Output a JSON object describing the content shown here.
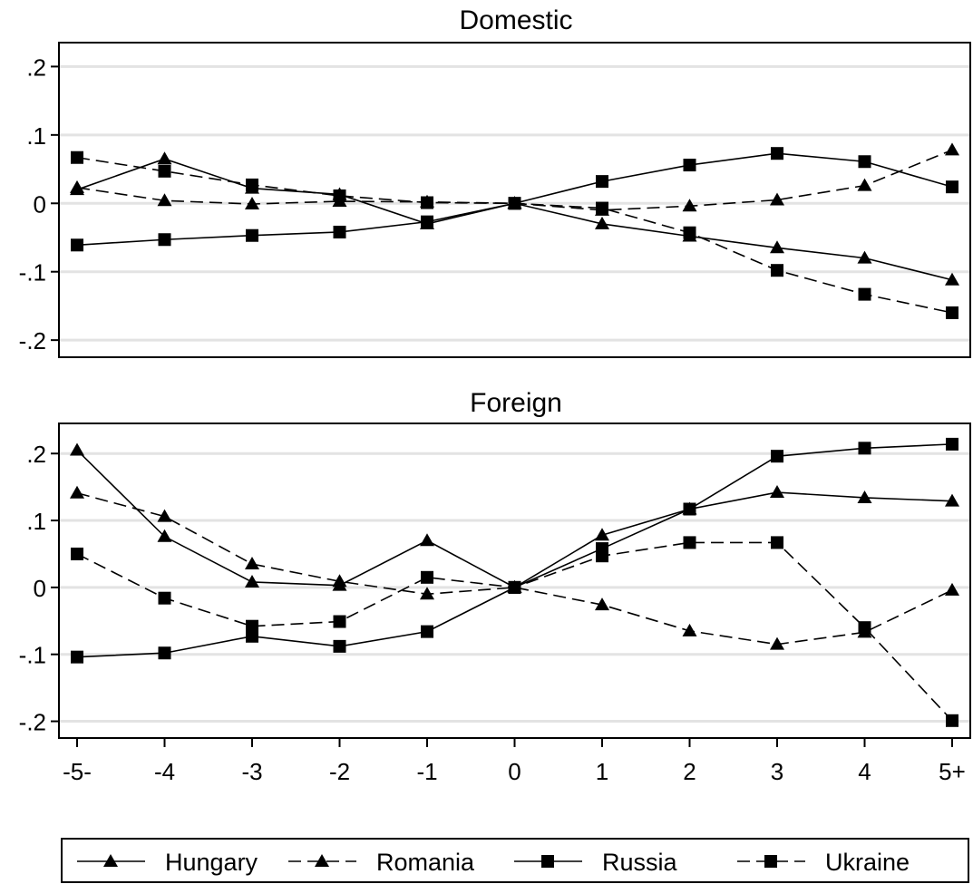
{
  "chart_data": {
    "type": "line",
    "x_tick_labels": [
      "-5-",
      "-4",
      "-3",
      "-2",
      "-1",
      "0",
      "1",
      "2",
      "3",
      "4",
      "5+"
    ],
    "y_tick_labels": [
      ".2",
      ".1",
      "0",
      "-.1",
      "-.2"
    ],
    "y_ticks": [
      0.2,
      0.1,
      0,
      -0.1,
      -0.2
    ],
    "grid": true,
    "legend_position": "bottom",
    "legend": [
      {
        "name": "Hungary",
        "marker": "triangle",
        "line": "solid"
      },
      {
        "name": "Romania",
        "marker": "triangle",
        "line": "dashed"
      },
      {
        "name": "Russia",
        "marker": "square",
        "line": "solid"
      },
      {
        "name": "Ukraine",
        "marker": "square",
        "line": "dashed"
      }
    ],
    "panels": [
      {
        "title": "Domestic",
        "ylim": [
          -0.225,
          0.235
        ],
        "series": [
          {
            "name": "Hungary",
            "values": [
              0.02,
              0.065,
              0.022,
              0.013,
              -0.03,
              0.0,
              -0.03,
              -0.048,
              -0.065,
              -0.08,
              -0.112
            ]
          },
          {
            "name": "Romania",
            "values": [
              0.023,
              0.004,
              -0.001,
              0.003,
              0.002,
              0.0,
              -0.01,
              -0.004,
              0.005,
              0.026,
              0.078
            ]
          },
          {
            "name": "Russia",
            "values": [
              -0.061,
              -0.053,
              -0.047,
              -0.042,
              -0.027,
              0.0,
              0.032,
              0.056,
              0.073,
              0.061,
              0.024
            ]
          },
          {
            "name": "Ukraine",
            "values": [
              0.067,
              0.047,
              0.027,
              0.011,
              0.001,
              0.0,
              -0.007,
              -0.043,
              -0.098,
              -0.133,
              -0.16
            ]
          }
        ]
      },
      {
        "title": "Foreign",
        "ylim": [
          -0.225,
          0.245
        ],
        "series": [
          {
            "name": "Hungary",
            "values": [
              0.205,
              0.076,
              0.008,
              0.003,
              0.07,
              0.0,
              0.078,
              0.117,
              0.142,
              0.134,
              0.129
            ]
          },
          {
            "name": "Romania",
            "values": [
              0.141,
              0.106,
              0.035,
              0.009,
              -0.01,
              0.0,
              -0.026,
              -0.065,
              -0.085,
              -0.067,
              -0.004
            ]
          },
          {
            "name": "Russia",
            "values": [
              -0.104,
              -0.098,
              -0.073,
              -0.088,
              -0.066,
              0.0,
              0.058,
              0.117,
              0.196,
              0.208,
              0.214
            ]
          },
          {
            "name": "Ukraine",
            "values": [
              0.05,
              -0.016,
              -0.058,
              -0.051,
              0.015,
              0.0,
              0.047,
              0.067,
              0.067,
              -0.06,
              -0.199
            ]
          }
        ]
      }
    ]
  }
}
